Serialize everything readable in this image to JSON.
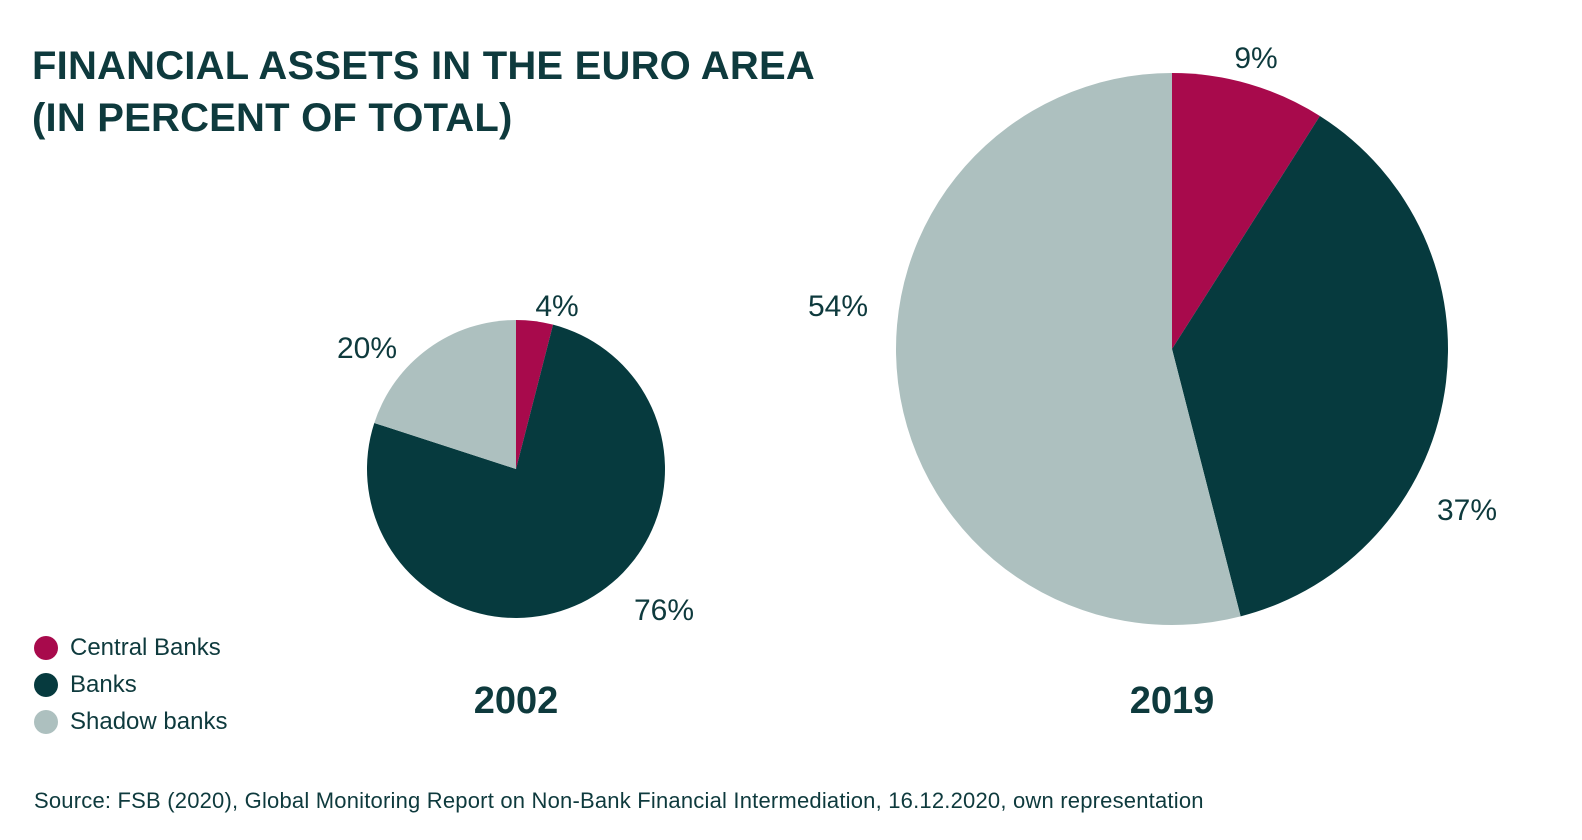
{
  "title_lines": [
    "FINANCIAL ASSETS IN THE EURO AREA",
    "(IN PERCENT OF TOTAL)"
  ],
  "source": "Source: FSB (2020), Global Monitoring Report on Non-Bank Financial Intermediation, 16.12.2020, own representation",
  "colors": {
    "central_banks": "#a80a4c",
    "banks": "#063a3e",
    "shadow_banks": "#adc0bf"
  },
  "legend": [
    {
      "label": "Central Banks",
      "color": "#a80a4c"
    },
    {
      "label": "Banks",
      "color": "#063a3e"
    },
    {
      "label": "Shadow banks",
      "color": "#adc0bf"
    }
  ],
  "chart_data": [
    {
      "type": "pie",
      "year_label": "2002",
      "relative_size": "small",
      "slices": [
        {
          "name": "Central Banks",
          "value": 4,
          "label": "4%"
        },
        {
          "name": "Banks",
          "value": 76,
          "label": "76%"
        },
        {
          "name": "Shadow banks",
          "value": 20,
          "label": "20%"
        }
      ]
    },
    {
      "type": "pie",
      "year_label": "2019",
      "relative_size": "large",
      "slices": [
        {
          "name": "Central Banks",
          "value": 9,
          "label": "9%"
        },
        {
          "name": "Banks",
          "value": 37,
          "label": "37%"
        },
        {
          "name": "Shadow banks",
          "value": 54,
          "label": "54%"
        }
      ]
    }
  ]
}
